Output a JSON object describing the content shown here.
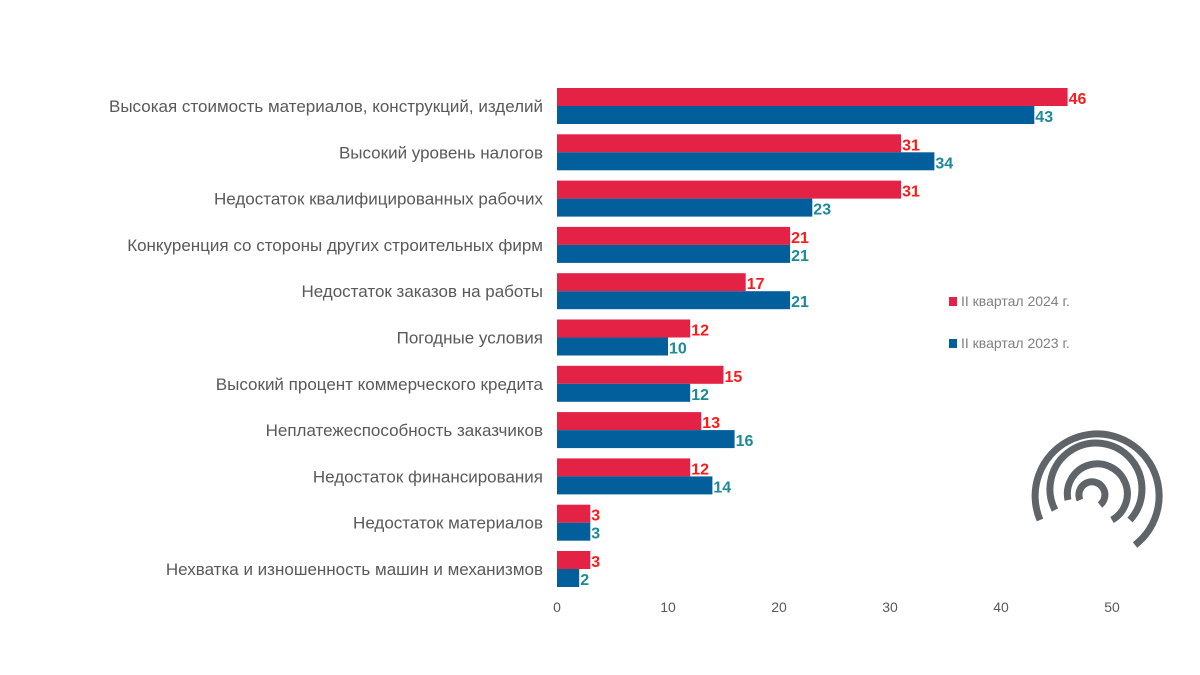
{
  "chart_data": {
    "type": "bar",
    "orientation": "horizontal",
    "categories": [
      "Высокая стоимость материалов, конструкций, изделий",
      "Высокий уровень налогов",
      "Недостаток квалифицированных рабочих",
      "Конкуренция со стороны других строительных фирм",
      "Недостаток заказов на работы",
      "Погодные условия",
      "Высокий процент коммерческого кредита",
      "Неплатежеспособность заказчиков",
      "Недостаток финансирования",
      "Недостаток материалов",
      "Нехватка и изношенность машин и механизмов"
    ],
    "series": [
      {
        "name": "II квартал  2024 г.",
        "color": "#e32245",
        "label_color": "#ff1a1a",
        "values": [
          46,
          31,
          31,
          21,
          17,
          12,
          15,
          13,
          12,
          3,
          3
        ]
      },
      {
        "name": "II квартал  2023 г.",
        "color": "#025f9c",
        "label_color": "#1b8a96",
        "values": [
          43,
          34,
          23,
          21,
          21,
          10,
          12,
          16,
          14,
          3,
          2
        ]
      }
    ],
    "xlim": [
      0,
      50
    ],
    "xticks": [
      0,
      10,
      20,
      30,
      40,
      50
    ],
    "grid": false,
    "legend": "right",
    "logo": "concentric-arcs-logo"
  }
}
